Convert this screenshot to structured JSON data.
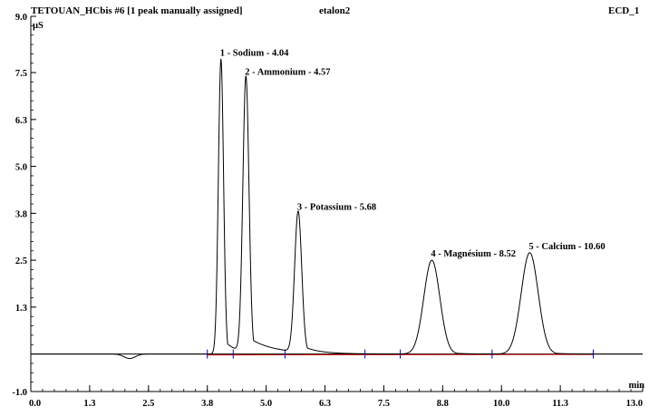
{
  "header": {
    "sample": "TETOUAN_HCbis #6 [1 peak manually assigned]",
    "standard": "etalon2",
    "detector": "ECD_1"
  },
  "chart_data": {
    "type": "line",
    "title": "",
    "xlabel": "min",
    "ylabel": "µS",
    "xlim": [
      0.0,
      13.0
    ],
    "ylim": [
      -1.0,
      9.0
    ],
    "x_ticks": [
      "0.0",
      "1.3",
      "2.5",
      "3.8",
      "5.0",
      "6.3",
      "7.5",
      "8.8",
      "10.0",
      "11.3",
      "13.0"
    ],
    "x_tick_values": [
      0.0,
      1.25,
      2.5,
      3.75,
      5.0,
      6.25,
      7.5,
      8.75,
      10.0,
      11.25,
      13.0
    ],
    "y_ticks": [
      "-1.0",
      "1.3",
      "2.5",
      "3.8",
      "5.0",
      "6.3",
      "7.5",
      "9.0"
    ],
    "y_tick_values": [
      -1.0,
      1.25,
      2.5,
      3.75,
      5.0,
      6.25,
      7.5,
      9.0
    ],
    "colors": {
      "trace": "#000000",
      "baseline": "#cc0000",
      "markers": "#0000cc"
    },
    "peaks": [
      {
        "label": "1 - Sodium - 4.04",
        "time": 4.04,
        "height": 7.85,
        "width": 0.055,
        "tail": 0.25
      },
      {
        "label": "2 - Ammonium - 4.57",
        "time": 4.57,
        "height": 7.35,
        "width": 0.065,
        "tail": 0.55
      },
      {
        "label": "3 - Potassium - 5.68",
        "time": 5.68,
        "height": 3.75,
        "width": 0.075,
        "tail": 0.3
      },
      {
        "label": "4 - Magnésium - 8.52",
        "time": 8.52,
        "height": 2.5,
        "width": 0.17,
        "tail": 0.25
      },
      {
        "label": "5 - Calcium - 10.60",
        "time": 10.6,
        "height": 2.7,
        "width": 0.18,
        "tail": 0.25
      }
    ],
    "dip": {
      "time": 2.1,
      "depth": -0.12
    },
    "integration_marks": [
      3.75,
      4.3,
      5.4,
      7.1,
      7.85,
      9.8,
      11.95
    ]
  }
}
